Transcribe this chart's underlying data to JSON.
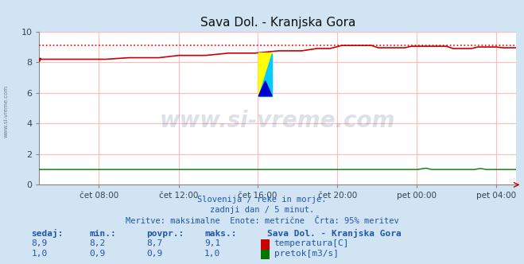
{
  "title": "Sava Dol. - Kranjska Gora",
  "bg_color": "#d0e4f4",
  "plot_bg_color": "#ffffff",
  "grid_color": "#ffbbbb",
  "x_tick_labels": [
    "čet 08:00",
    "čet 12:00",
    "čet 16:00",
    "čet 20:00",
    "pet 00:00",
    "pet 04:00"
  ],
  "x_tick_positions": [
    0.125,
    0.292,
    0.458,
    0.625,
    0.792,
    0.958
  ],
  "ylim": [
    0,
    10
  ],
  "yticks": [
    0,
    2,
    4,
    6,
    8,
    10
  ],
  "temp_color": "#cc0000",
  "pretok_color": "#007700",
  "dotted_color": "#ff0000",
  "watermark_text": "www.si-vreme.com",
  "watermark_color": "#1a3a6a",
  "watermark_alpha": 0.15,
  "subtitle1": "Slovenija / reke in morje.",
  "subtitle2": "zadnji dan / 5 minut.",
  "subtitle3": "Meritve: maksimalne  Enote: metrične  Črta: 95% meritev",
  "subtitle_color": "#2255aa",
  "legend_title": "Sava Dol. - Kranjska Gora",
  "legend_color": "#2255aa",
  "stats_headers": [
    "sedaj:",
    "min.:",
    "povpr.:",
    "maks.:"
  ],
  "stats_temp": [
    "8,9",
    "8,2",
    "8,7",
    "9,1"
  ],
  "stats_pretok": [
    "1,0",
    "0,9",
    "0,9",
    "1,0"
  ],
  "temp_95": 9.1
}
